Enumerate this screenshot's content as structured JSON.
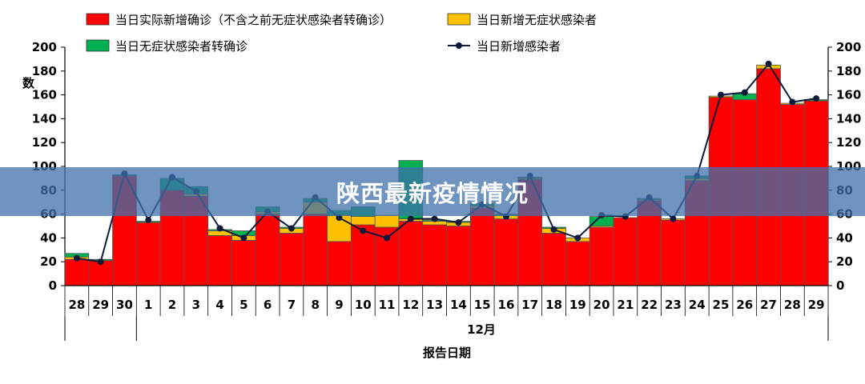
{
  "banner": {
    "title": "陕西最新疫情情况"
  },
  "chart_data": {
    "type": "bar",
    "stacked": true,
    "categories": [
      "28",
      "29",
      "30",
      "1",
      "2",
      "3",
      "4",
      "5",
      "6",
      "7",
      "8",
      "9",
      "10",
      "11",
      "12",
      "13",
      "14",
      "15",
      "16",
      "17",
      "18",
      "19",
      "20",
      "21",
      "22",
      "23",
      "24",
      "25",
      "26",
      "27",
      "28",
      "29"
    ],
    "xgroup_label": "12月",
    "xlabel": "报告日期",
    "ylabel": "数",
    "ylim": [
      0,
      200
    ],
    "yticks": [
      0,
      20,
      40,
      60,
      80,
      100,
      120,
      140,
      160,
      180,
      200
    ],
    "grid": false,
    "legend_position": "top",
    "series": [
      {
        "name": "当日实际新增确诊（不含之前无症状感染者转确诊）",
        "kind": "bar",
        "color": "#ff0000",
        "values": [
          22,
          21,
          92,
          53,
          80,
          75,
          42,
          38,
          60,
          44,
          60,
          37,
          51,
          49,
          54,
          51,
          50,
          65,
          56,
          89,
          44,
          37,
          49,
          57,
          71,
          55,
          88,
          158,
          156,
          182,
          152,
          155
        ]
      },
      {
        "name": "当日新增无症状感染者",
        "kind": "bar",
        "color": "#ffc000",
        "values": [
          2,
          0,
          0,
          0,
          0,
          2,
          4,
          4,
          2,
          4,
          10,
          22,
          7,
          10,
          2,
          3,
          3,
          2,
          3,
          1,
          4,
          3,
          1,
          0,
          1,
          1,
          2,
          1,
          0,
          3,
          1,
          0
        ]
      },
      {
        "name": "当日无症状感染者转确诊",
        "kind": "bar",
        "color": "#00b050",
        "values": [
          3,
          1,
          1,
          1,
          10,
          6,
          1,
          4,
          4,
          1,
          3,
          4,
          8,
          0,
          49,
          1,
          1,
          2,
          1,
          1,
          1,
          0,
          8,
          0,
          1,
          0,
          2,
          0,
          5,
          0,
          0,
          1
        ]
      },
      {
        "name": "当日新增感染者",
        "kind": "line",
        "color": "#0d1a3a",
        "values": [
          23,
          20,
          94,
          55,
          91,
          79,
          48,
          40,
          62,
          48,
          74,
          57,
          46,
          40,
          56,
          56,
          53,
          68,
          58,
          92,
          47,
          40,
          59,
          58,
          74,
          56,
          92,
          160,
          162,
          186,
          154,
          157
        ]
      }
    ]
  }
}
